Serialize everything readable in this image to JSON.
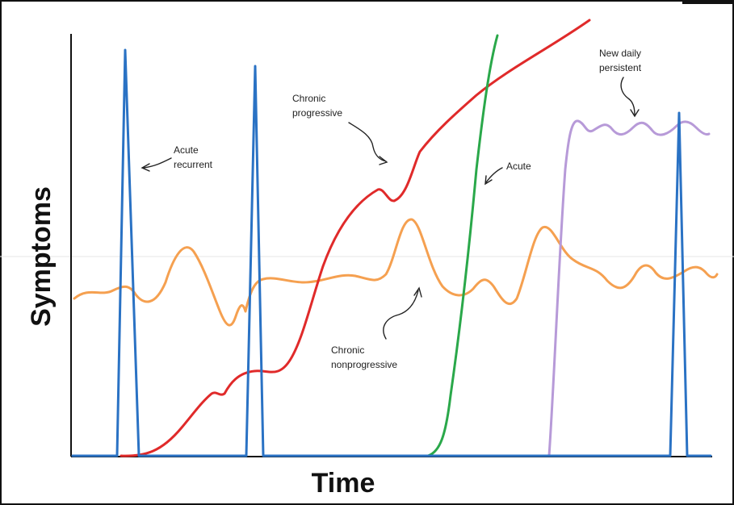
{
  "y_axis_label": "Symptoms",
  "x_axis_label": "Time",
  "annotations": {
    "acute_recurrent": [
      "Acute",
      "recurrent"
    ],
    "chronic_progressive": [
      "Chronic",
      "progressive"
    ],
    "acute": [
      "Acute"
    ],
    "new_daily_persistent": [
      "New daily",
      "persistent"
    ],
    "chronic_nonprogressive": [
      "Chronic",
      "nonprogressive"
    ]
  },
  "colors": {
    "acute_recurrent": "#2a72c4",
    "chronic_progressive": "#e02a2a",
    "acute": "#2aa84a",
    "new_daily_persistent": "#b79ad8",
    "chronic_nonprogressive": "#f5a050",
    "axis": "#111111"
  }
}
